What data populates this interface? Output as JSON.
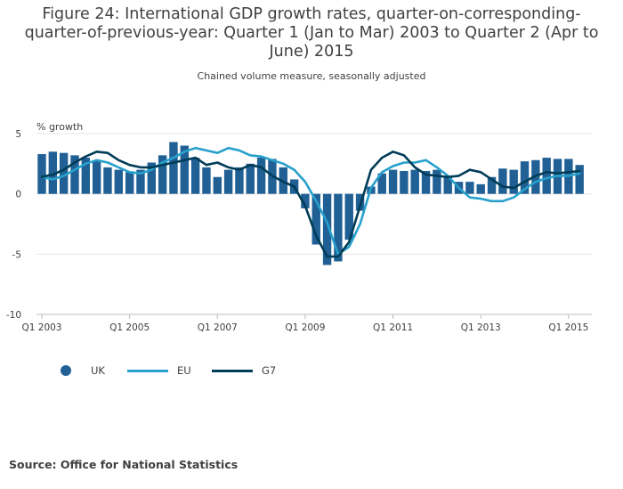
{
  "title": "Figure 24: International GDP growth rates, quarter-on-corresponding-quarter-of-previous-year: Quarter 1 (Jan to Mar) 2003 to Quarter 2 (Apr to June) 2015",
  "subtitle": "Chained volume measure, seasonally adjusted",
  "source": "Source: Office for National Statistics",
  "colors": {
    "uk": "#206095",
    "eu": "#27a0cc",
    "g7": "#003c57",
    "grid": "#e6e6e6",
    "axis": "#bcbcbc"
  },
  "legend": [
    {
      "key": "uk",
      "label": "UK",
      "symbol": "dot"
    },
    {
      "key": "eu",
      "label": "EU",
      "symbol": "line"
    },
    {
      "key": "g7",
      "label": "G7",
      "symbol": "line"
    }
  ],
  "chart_data": {
    "type": "bar",
    "ylabel": "% growth",
    "ylim": [
      -10,
      5
    ],
    "yticks": [
      5,
      0,
      -5,
      -10
    ],
    "grid": true,
    "legend_position": "bottom-left",
    "categories": [
      "Q1 2003",
      "Q2 2003",
      "Q3 2003",
      "Q4 2003",
      "Q1 2004",
      "Q2 2004",
      "Q3 2004",
      "Q4 2004",
      "Q1 2005",
      "Q2 2005",
      "Q3 2005",
      "Q4 2005",
      "Q1 2006",
      "Q2 2006",
      "Q3 2006",
      "Q4 2006",
      "Q1 2007",
      "Q2 2007",
      "Q3 2007",
      "Q4 2007",
      "Q1 2008",
      "Q2 2008",
      "Q3 2008",
      "Q4 2008",
      "Q1 2009",
      "Q2 2009",
      "Q3 2009",
      "Q4 2009",
      "Q1 2010",
      "Q2 2010",
      "Q3 2010",
      "Q4 2010",
      "Q1 2011",
      "Q2 2011",
      "Q3 2011",
      "Q4 2011",
      "Q1 2012",
      "Q2 2012",
      "Q3 2012",
      "Q4 2012",
      "Q1 2013",
      "Q2 2013",
      "Q3 2013",
      "Q4 2013",
      "Q1 2014",
      "Q2 2014",
      "Q3 2014",
      "Q4 2014",
      "Q1 2015",
      "Q2 2015"
    ],
    "xtick_labels": [
      "Q1 2003",
      "Q1 2005",
      "Q1 2007",
      "Q1 2009",
      "Q1 2011",
      "Q1 2013",
      "Q1 2015"
    ],
    "series": [
      {
        "name": "UK",
        "type": "bar",
        "values": [
          3.3,
          3.5,
          3.4,
          3.2,
          3.0,
          2.8,
          2.2,
          2.0,
          1.8,
          2.0,
          2.6,
          3.2,
          4.3,
          4.0,
          3.0,
          2.2,
          1.4,
          2.0,
          2.2,
          2.5,
          3.0,
          2.9,
          2.2,
          1.2,
          -1.2,
          -4.2,
          -5.9,
          -5.6,
          -3.8,
          -1.4,
          0.6,
          1.7,
          2.0,
          1.9,
          2.0,
          1.9,
          2.0,
          1.5,
          1.0,
          1.0,
          0.8,
          1.4,
          2.1,
          2.0,
          2.7,
          2.8,
          3.0,
          2.9,
          2.9,
          2.4
        ]
      },
      {
        "name": "EU",
        "type": "line",
        "values": [
          1.4,
          1.2,
          1.5,
          2.0,
          2.5,
          2.8,
          2.6,
          2.2,
          1.8,
          1.7,
          2.0,
          2.6,
          3.0,
          3.5,
          3.8,
          3.6,
          3.4,
          3.8,
          3.6,
          3.2,
          3.1,
          2.8,
          2.5,
          2.0,
          1.0,
          -0.6,
          -2.4,
          -5.0,
          -4.4,
          -2.5,
          0.5,
          1.8,
          2.3,
          2.6,
          2.6,
          2.8,
          2.2,
          1.5,
          0.5,
          -0.3,
          -0.4,
          -0.6,
          -0.6,
          -0.3,
          0.4,
          1.0,
          1.3,
          1.5,
          1.5,
          1.7
        ]
      },
      {
        "name": "G7",
        "type": "line",
        "values": [
          1.4,
          1.6,
          2.0,
          2.6,
          3.1,
          3.5,
          3.4,
          2.8,
          2.4,
          2.2,
          2.2,
          2.4,
          2.6,
          2.8,
          3.0,
          2.4,
          2.6,
          2.2,
          2.0,
          2.4,
          2.2,
          1.5,
          1.0,
          0.6,
          -1.0,
          -3.5,
          -5.2,
          -5.2,
          -4.0,
          -1.0,
          2.0,
          3.0,
          3.5,
          3.2,
          2.2,
          1.6,
          1.5,
          1.4,
          1.5,
          2.0,
          1.8,
          1.2,
          0.6,
          0.5,
          1.0,
          1.5,
          1.8,
          1.7,
          1.8,
          1.9
        ]
      }
    ]
  }
}
